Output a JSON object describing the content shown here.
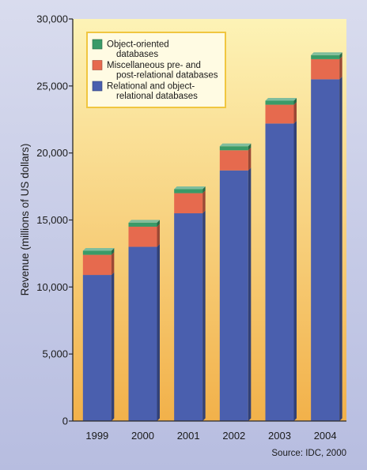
{
  "chart_data": {
    "type": "bar",
    "stacked": true,
    "categories": [
      "1999",
      "2000",
      "2001",
      "2002",
      "2003",
      "2004"
    ],
    "series": [
      {
        "name": "Relational and object-relational databases",
        "color": "#4a5fae",
        "values": [
          10900,
          13000,
          15500,
          18700,
          22200,
          25500
        ]
      },
      {
        "name": "Miscellaneous pre- and post-relational databases",
        "color": "#e66a4e",
        "values": [
          1500,
          1500,
          1500,
          1500,
          1400,
          1500
        ]
      },
      {
        "name": "Object-oriented databases",
        "color": "#3a9a68",
        "values": [
          300,
          300,
          300,
          300,
          300,
          300
        ]
      }
    ],
    "legend_lines": [
      [
        "Object-oriented",
        "databases"
      ],
      [
        "Miscellaneous pre- and",
        "post-relational databases"
      ],
      [
        "Relational and object-",
        "relational databases"
      ]
    ],
    "ylabel": "Revenue (millions of US dollars)",
    "ylim": [
      0,
      30000
    ],
    "yticks": [
      0,
      5000,
      10000,
      15000,
      20000,
      25000,
      30000
    ],
    "ytick_labels": [
      "0",
      "5,000",
      "10,000",
      "15,000",
      "20,000",
      "25,000",
      "30,000"
    ],
    "legend_position": "top-left",
    "grid": false,
    "colors": {
      "plot_background_top": "#fdf3b6",
      "plot_background_bottom": "#f2b14a",
      "frame": "#2a2a2a"
    }
  },
  "source_note": "Source: IDC, 2000"
}
